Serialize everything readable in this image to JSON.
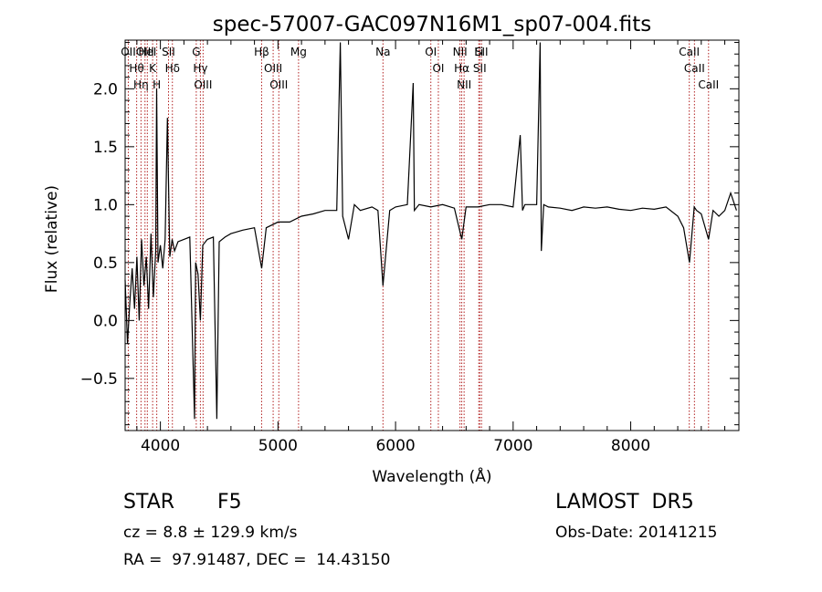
{
  "chart_data": {
    "type": "line",
    "title": "spec-57007-GAC097N16M1_sp07-004.fits",
    "xlabel": "Wavelength (Å)",
    "ylabel": "Flux (relative)",
    "xlim": [
      3700,
      8920
    ],
    "ylim": [
      -0.95,
      2.42
    ],
    "xticks": [
      4000,
      5000,
      6000,
      7000,
      8000
    ],
    "xtick_labels": [
      "4000",
      "5000",
      "6000",
      "7000",
      "8000"
    ],
    "yticks": [
      -0.5,
      0.0,
      0.5,
      1.0,
      1.5,
      2.0
    ],
    "ytick_labels": [
      "−0.5",
      "0.0",
      "0.5",
      "1.0",
      "1.5",
      "2.0"
    ],
    "grid": false,
    "line_color": "#000000",
    "marker_color": "#b22222",
    "series": [
      {
        "x": [
          3700,
          3720,
          3740,
          3760,
          3780,
          3800,
          3820,
          3840,
          3860,
          3880,
          3900,
          3920,
          3940,
          3960,
          3968,
          3980,
          4000,
          4020,
          4040,
          4060,
          4080,
          4100,
          4120,
          4150,
          4200,
          4250,
          4290,
          4300,
          4320,
          4340,
          4360,
          4400,
          4450,
          4480,
          4500,
          4550,
          4600,
          4700,
          4800,
          4861,
          4900,
          5000,
          5100,
          5200,
          5300,
          5400,
          5500,
          5530,
          5550,
          5600,
          5650,
          5700,
          5800,
          5850,
          5893,
          5950,
          6000,
          6100,
          6150,
          6160,
          6200,
          6300,
          6400,
          6500,
          6563,
          6600,
          6700,
          6800,
          6900,
          7000,
          7060,
          7080,
          7100,
          7200,
          7230,
          7240,
          7260,
          7300,
          7400,
          7500,
          7600,
          7700,
          7800,
          7900,
          8000,
          8100,
          8200,
          8300,
          8400,
          8450,
          8500,
          8540,
          8560,
          8600,
          8662,
          8700,
          8750,
          8800,
          8850,
          8900
        ],
        "values": [
          0.35,
          -0.2,
          0.15,
          0.45,
          0.1,
          0.55,
          0.0,
          0.7,
          0.3,
          0.55,
          0.1,
          0.75,
          0.2,
          0.6,
          2.0,
          0.5,
          0.65,
          0.45,
          0.7,
          1.75,
          0.55,
          0.7,
          0.6,
          0.68,
          0.7,
          0.72,
          -0.85,
          0.5,
          0.4,
          0.0,
          0.65,
          0.7,
          0.72,
          -0.85,
          0.68,
          0.72,
          0.75,
          0.78,
          0.8,
          0.45,
          0.8,
          0.85,
          0.85,
          0.9,
          0.92,
          0.95,
          0.95,
          2.4,
          0.9,
          0.7,
          1.0,
          0.95,
          0.98,
          0.95,
          0.3,
          0.95,
          0.98,
          1.0,
          2.05,
          0.95,
          1.0,
          0.98,
          1.0,
          0.97,
          0.7,
          0.98,
          0.98,
          1.0,
          1.0,
          0.98,
          1.6,
          0.95,
          1.0,
          1.0,
          2.4,
          0.6,
          1.0,
          0.98,
          0.97,
          0.95,
          0.98,
          0.97,
          0.98,
          0.96,
          0.95,
          0.97,
          0.96,
          0.98,
          0.9,
          0.8,
          0.5,
          0.98,
          0.95,
          0.92,
          0.7,
          0.95,
          0.9,
          0.95,
          1.1,
          0.95
        ]
      }
    ],
    "lines": [
      {
        "label": "Hθ",
        "x": 3798
      },
      {
        "label": "OII",
        "x": 3727
      },
      {
        "label": "OIII",
        "x": 3869
      },
      {
        "label": "Hη",
        "x": 3835
      },
      {
        "label": "K",
        "x": 3934
      },
      {
        "label": "HeI",
        "x": 3889
      },
      {
        "label": "H",
        "x": 3969
      },
      {
        "label": "Hδ",
        "x": 4102
      },
      {
        "label": "SII",
        "x": 4069
      },
      {
        "label": "OIII",
        "x": 4363
      },
      {
        "label": "Hγ",
        "x": 4340
      },
      {
        "label": "G",
        "x": 4305
      },
      {
        "label": "OIII",
        "x": 5007
      },
      {
        "label": "OIII",
        "x": 4959
      },
      {
        "label": "Hβ",
        "x": 4861
      },
      {
        "label": "Mg",
        "x": 5175
      },
      {
        "label": "Na",
        "x": 5893
      },
      {
        "label": "OI",
        "x": 6300
      },
      {
        "label": "OI",
        "x": 6364
      },
      {
        "label": "Hα",
        "x": 6563
      },
      {
        "label": "NII",
        "x": 6548
      },
      {
        "label": "NII",
        "x": 6583
      },
      {
        "label": "SII",
        "x": 6716
      },
      {
        "label": "Li",
        "x": 6708
      },
      {
        "label": "SII",
        "x": 6731
      },
      {
        "label": "CaII",
        "x": 8498
      },
      {
        "label": "CaII",
        "x": 8542
      },
      {
        "label": "CaII",
        "x": 8662
      }
    ]
  },
  "info": {
    "obj_class": "STAR",
    "subclass": "F5",
    "survey": "LAMOST  DR5",
    "cz": "cz = 8.8 ± 129.9 km/s",
    "obs_date": "Obs-Date: 20141215",
    "radec": "RA =  97.91487, DEC =  14.43150"
  }
}
